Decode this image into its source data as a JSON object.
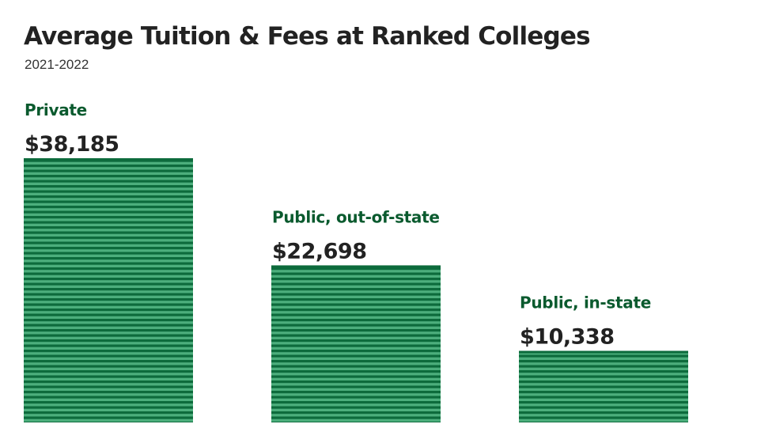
{
  "chart_data": {
    "type": "bar",
    "title": "Average Tuition & Fees at Ranked Colleges",
    "subtitle": "2021-2022",
    "categories": [
      "Private",
      "Public, out-of-state",
      "Public, in-state"
    ],
    "values": [
      38185,
      22698,
      10338
    ],
    "value_labels": [
      "$38,185",
      "$22,698",
      "$10,338"
    ],
    "xlabel": "",
    "ylabel": "",
    "ylim": [
      0,
      38185
    ],
    "grid": false,
    "legend": "none"
  },
  "colors": {
    "title": "#222222",
    "category_label": "#0a5a2e",
    "value_label": "#222222",
    "bar_stripe_dark": "#0d6b3c",
    "bar_stripe_light": "#4cae7c"
  }
}
